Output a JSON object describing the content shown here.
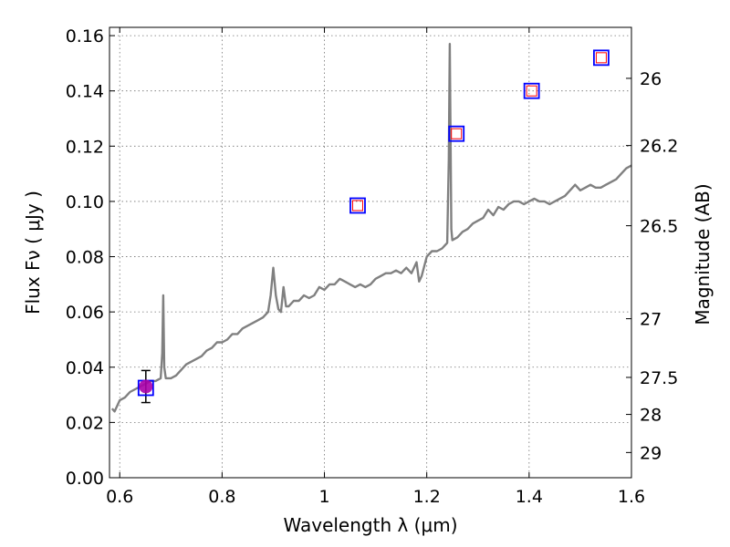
{
  "chart_data": {
    "type": "line",
    "xlabel": "Wavelength  λ (μm)",
    "ylabel": "Flux  Fν  ( μJy )",
    "y2label": "Magnitude (AB)",
    "xlim": [
      0.58,
      1.6
    ],
    "ylim": [
      0.0,
      0.163
    ],
    "x_ticks": [
      0.6,
      0.8,
      1.0,
      1.2,
      1.4,
      1.6
    ],
    "x_tick_labels": [
      "0.6",
      "0.8",
      "1",
      "1.2",
      "1.4",
      "1.6"
    ],
    "y_ticks": [
      0.0,
      0.02,
      0.04,
      0.06,
      0.08,
      0.1,
      0.12,
      0.14,
      0.16
    ],
    "y_tick_labels": [
      "0.00",
      "0.02",
      "0.04",
      "0.06",
      "0.08",
      "0.10",
      "0.12",
      "0.14",
      "0.16"
    ],
    "y2_ticks": [
      26,
      26.2,
      26.5,
      27,
      27.5,
      28,
      29
    ],
    "y2_tick_labels": [
      "26",
      "26.2",
      "26.5",
      "27",
      "27.5",
      "28",
      "29"
    ],
    "grid": true,
    "colors": {
      "spectrum": "#808080",
      "observed_box": "#0000ff",
      "model_box": "#ff0000",
      "detection_point": "#aa00aa",
      "errorbar": "#000000"
    },
    "spectrum": {
      "x": [
        0.585,
        0.59,
        0.6,
        0.61,
        0.62,
        0.63,
        0.64,
        0.65,
        0.66,
        0.67,
        0.68,
        0.683,
        0.685,
        0.687,
        0.69,
        0.7,
        0.71,
        0.72,
        0.73,
        0.74,
        0.75,
        0.76,
        0.77,
        0.78,
        0.79,
        0.8,
        0.81,
        0.82,
        0.83,
        0.84,
        0.85,
        0.86,
        0.87,
        0.88,
        0.89,
        0.895,
        0.9,
        0.905,
        0.91,
        0.915,
        0.92,
        0.925,
        0.93,
        0.94,
        0.95,
        0.96,
        0.97,
        0.98,
        0.99,
        1.0,
        1.01,
        1.02,
        1.03,
        1.04,
        1.05,
        1.06,
        1.07,
        1.08,
        1.09,
        1.1,
        1.11,
        1.12,
        1.13,
        1.14,
        1.15,
        1.16,
        1.17,
        1.18,
        1.185,
        1.19,
        1.2,
        1.21,
        1.22,
        1.23,
        1.235,
        1.24,
        1.243,
        1.245,
        1.248,
        1.25,
        1.26,
        1.27,
        1.28,
        1.29,
        1.3,
        1.31,
        1.32,
        1.33,
        1.34,
        1.35,
        1.36,
        1.37,
        1.38,
        1.39,
        1.4,
        1.41,
        1.42,
        1.43,
        1.44,
        1.45,
        1.46,
        1.47,
        1.48,
        1.49,
        1.5,
        1.51,
        1.52,
        1.53,
        1.54,
        1.55,
        1.56,
        1.57,
        1.58,
        1.59,
        1.6
      ],
      "y": [
        0.025,
        0.024,
        0.028,
        0.029,
        0.031,
        0.032,
        0.033,
        0.034,
        0.035,
        0.035,
        0.036,
        0.045,
        0.066,
        0.04,
        0.036,
        0.036,
        0.037,
        0.039,
        0.041,
        0.042,
        0.043,
        0.044,
        0.046,
        0.047,
        0.049,
        0.049,
        0.05,
        0.052,
        0.052,
        0.054,
        0.055,
        0.056,
        0.057,
        0.058,
        0.06,
        0.066,
        0.076,
        0.066,
        0.061,
        0.06,
        0.069,
        0.062,
        0.062,
        0.064,
        0.064,
        0.066,
        0.065,
        0.066,
        0.069,
        0.068,
        0.07,
        0.07,
        0.072,
        0.071,
        0.07,
        0.069,
        0.07,
        0.069,
        0.07,
        0.072,
        0.073,
        0.074,
        0.074,
        0.075,
        0.074,
        0.076,
        0.074,
        0.078,
        0.071,
        0.073,
        0.08,
        0.082,
        0.082,
        0.083,
        0.084,
        0.085,
        0.115,
        0.157,
        0.09,
        0.086,
        0.087,
        0.089,
        0.09,
        0.092,
        0.093,
        0.094,
        0.097,
        0.095,
        0.098,
        0.097,
        0.099,
        0.1,
        0.1,
        0.099,
        0.1,
        0.101,
        0.1,
        0.1,
        0.099,
        0.1,
        0.101,
        0.102,
        0.104,
        0.106,
        0.104,
        0.105,
        0.106,
        0.105,
        0.105,
        0.106,
        0.107,
        0.108,
        0.11,
        0.112,
        0.113
      ]
    },
    "photometry": [
      {
        "x": 1.065,
        "observed": 0.0985,
        "model": 0.0985
      },
      {
        "x": 1.258,
        "observed": 0.1245,
        "model": 0.1245
      },
      {
        "x": 1.405,
        "observed": 0.14,
        "model": 0.14
      },
      {
        "x": 1.541,
        "observed": 0.152,
        "model": 0.152
      }
    ],
    "detection": {
      "x": 0.651,
      "y": 0.033,
      "box": 0.0325,
      "yerr_low": 0.0058,
      "yerr_high": 0.0058
    }
  }
}
